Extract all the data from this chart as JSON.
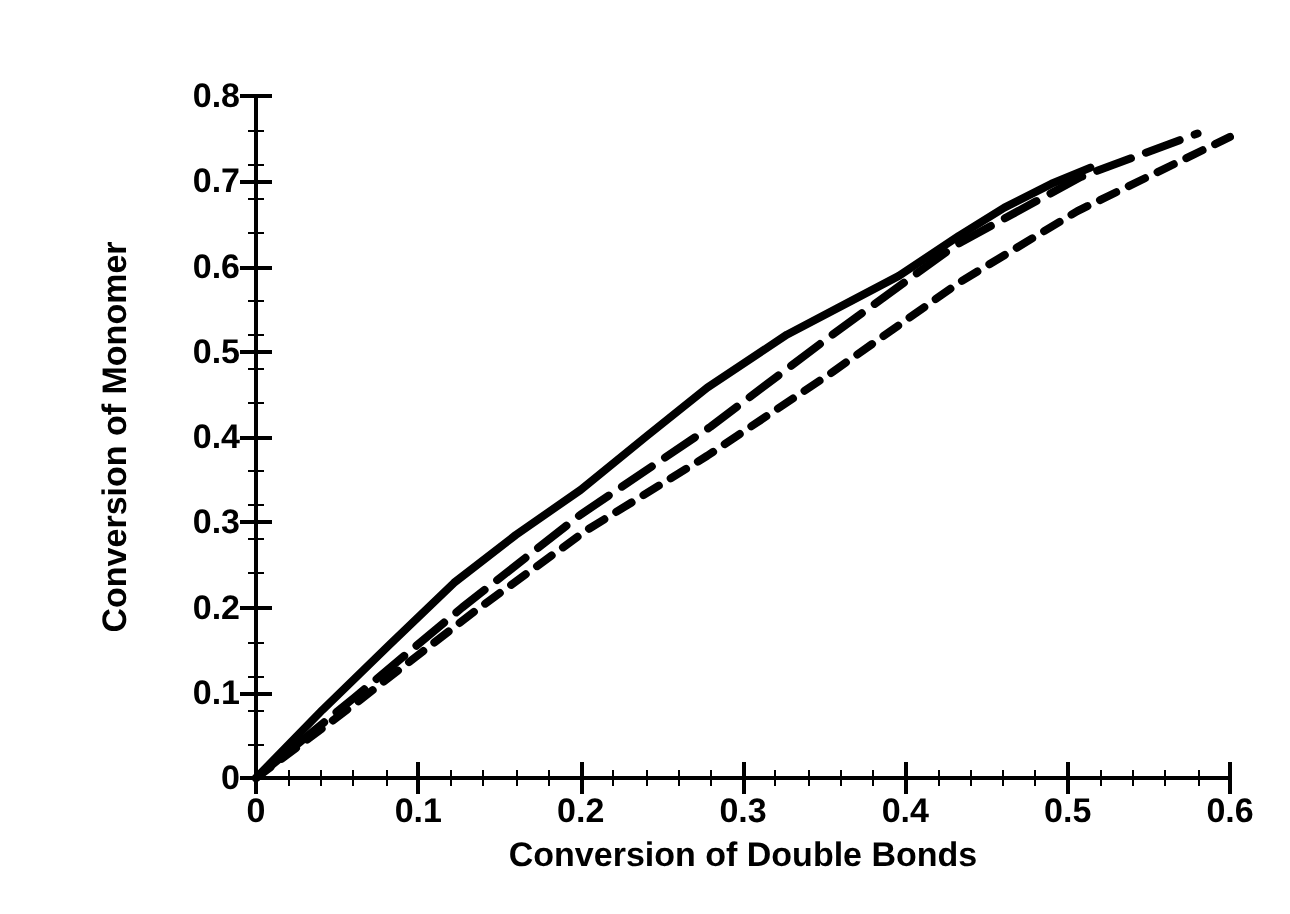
{
  "chart_data": {
    "type": "line",
    "xlabel": "Conversion of Double Bonds",
    "ylabel": "Conversion of Monomer",
    "xlim": [
      0,
      0.6
    ],
    "ylim": [
      0,
      0.8
    ],
    "xticks": [
      0,
      0.1,
      0.2,
      0.3,
      0.4,
      0.5,
      0.6
    ],
    "yticks": [
      0,
      0.1,
      0.2,
      0.3,
      0.4,
      0.5,
      0.6,
      0.7,
      0.8
    ],
    "grid": false,
    "marker": "none",
    "series": [
      {
        "color": "#000000",
        "line_style": "solid",
        "x": [
          0,
          0.041,
          0.082,
          0.122,
          0.16,
          0.2,
          0.24,
          0.278,
          0.327,
          0.367,
          0.396,
          0.433,
          0.461,
          0.49,
          0.514
        ],
        "values": [
          0,
          0.08,
          0.156,
          0.229,
          0.285,
          0.338,
          0.4,
          0.458,
          0.52,
          0.56,
          0.589,
          0.636,
          0.669,
          0.697,
          0.716
        ]
      },
      {
        "color": "#000000",
        "line_style": "dashed",
        "x": [
          0,
          0.061,
          0.127,
          0.2,
          0.28,
          0.355,
          0.431,
          0.508,
          0.58
        ],
        "values": [
          0,
          0.095,
          0.2,
          0.309,
          0.412,
          0.52,
          0.625,
          0.705,
          0.756
        ]
      },
      {
        "color": "#000000",
        "line_style": "dotted",
        "x": [
          0,
          0.061,
          0.135,
          0.204,
          0.278,
          0.355,
          0.433,
          0.506,
          0.6
        ],
        "values": [
          0,
          0.087,
          0.196,
          0.291,
          0.378,
          0.476,
          0.581,
          0.665,
          0.752
        ]
      }
    ]
  }
}
